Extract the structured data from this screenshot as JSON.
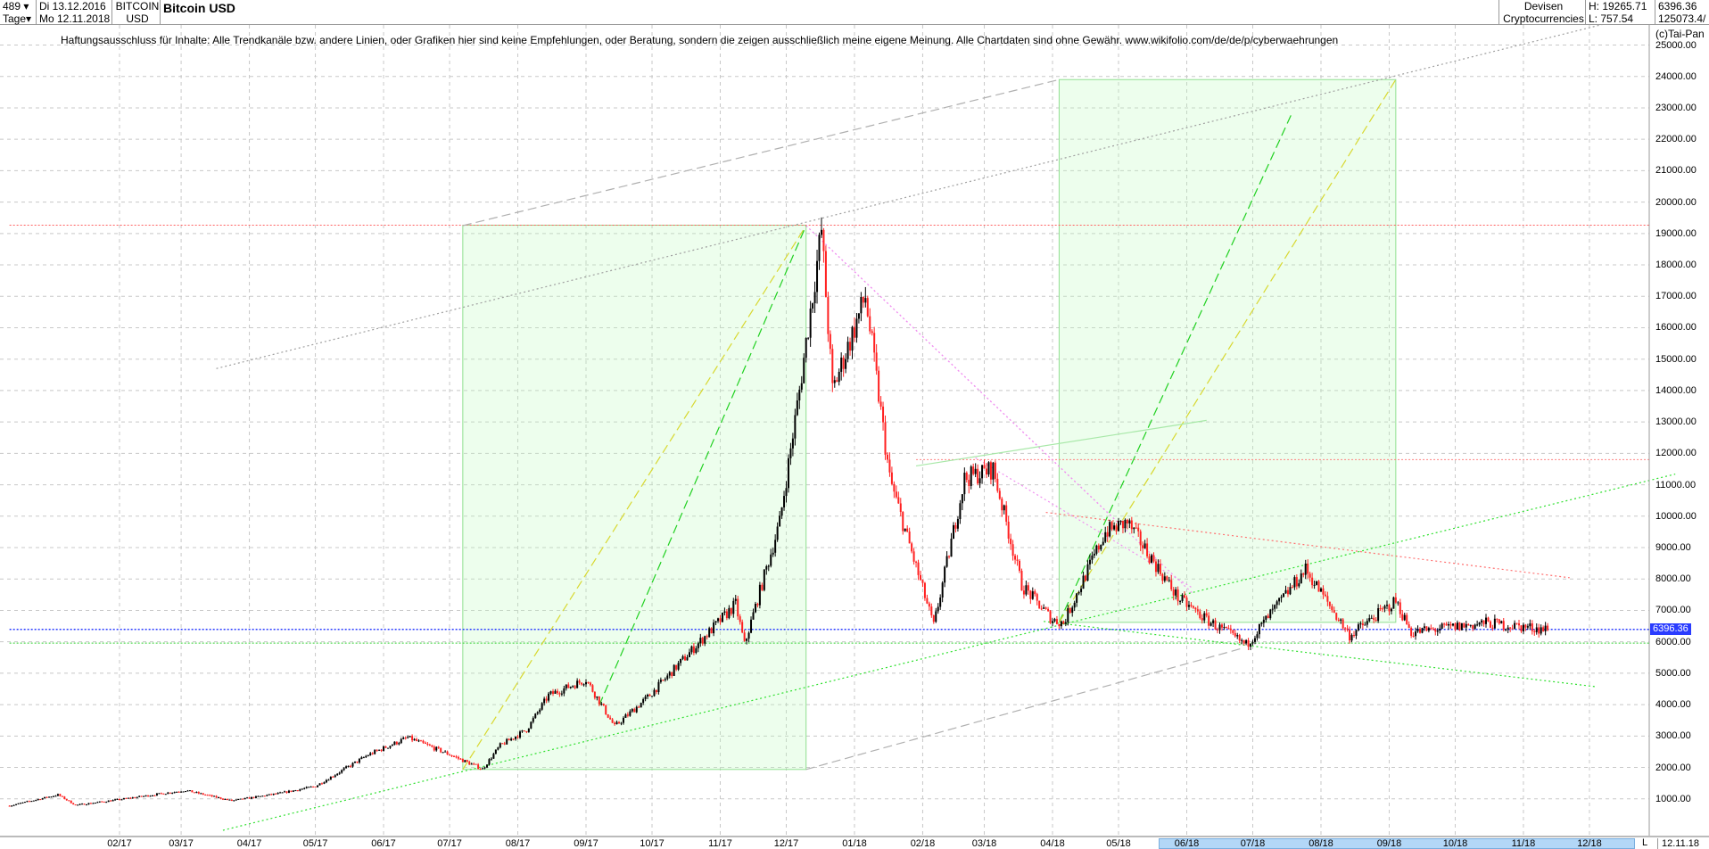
{
  "header": {
    "count": "489",
    "period": "Tage",
    "start_date": "Di 13.12.2016",
    "end_date": "Mo 12.11.2018",
    "symbol_line1": "BITCOIN",
    "symbol_line2": "USD",
    "title": "Bitcoin USD",
    "category1": "Devisen",
    "category2": "Cryptocurrencies",
    "high": "H: 19265.71",
    "low": "L: 757.54",
    "last": "6396.36",
    "volume": "125073.4/"
  },
  "disclaimer": "Haftungsausschluss für Inhalte: Alle Trendkanäle bzw. andere Linien, oder Grafiken hier sind keine Empfehlungen, oder Beratung, sondern die zeigen ausschließlich meine eigene Meinung. Alle Chartdaten sind ohne Gewähr.  www.wikifolio.com/de/de/p/cyberwaehrungen",
  "copyright": "(c)Tai-Pan",
  "xaxis": {
    "l_button": "L",
    "current_date": "12.11.18"
  },
  "colors": {
    "up": "#000000",
    "down": "#ff2020",
    "box": "#90e090",
    "last_price": "#2a3cff"
  },
  "chart_data": {
    "type": "candlestick",
    "title": "Bitcoin USD",
    "ylim": [
      0,
      25000
    ],
    "yticks": [
      "1000.00",
      "2000.00",
      "3000.00",
      "4000.00",
      "5000.00",
      "6000.00",
      "7000.00",
      "8000.00",
      "9000.00",
      "10000.00",
      "11000.00",
      "12000.00",
      "13000.00",
      "14000.00",
      "15000.00",
      "16000.00",
      "17000.00",
      "18000.00",
      "19000.00",
      "20000.00",
      "21000.00",
      "22000.00",
      "23000.00",
      "24000.00",
      "25000.00"
    ],
    "xticks": [
      [
        "2017-02-01",
        "02/17"
      ],
      [
        "2017-03-01",
        "03/17"
      ],
      [
        "2017-04-01",
        "04/17"
      ],
      [
        "2017-05-01",
        "05/17"
      ],
      [
        "2017-06-01",
        "06/17"
      ],
      [
        "2017-07-01",
        "07/17"
      ],
      [
        "2017-08-01",
        "08/17"
      ],
      [
        "2017-09-01",
        "09/17"
      ],
      [
        "2017-10-01",
        "10/17"
      ],
      [
        "2017-11-01",
        "11/17"
      ],
      [
        "2017-12-01",
        "12/17"
      ],
      [
        "2018-01-01",
        "01/18"
      ],
      [
        "2018-02-01",
        "02/18"
      ],
      [
        "2018-03-01",
        "03/18"
      ],
      [
        "2018-04-01",
        "04/18"
      ],
      [
        "2018-05-01",
        "05/18"
      ],
      [
        "2018-06-01",
        "06/18"
      ],
      [
        "2018-07-01",
        "07/18"
      ],
      [
        "2018-08-01",
        "08/18"
      ],
      [
        "2018-09-01",
        "09/18"
      ],
      [
        "2018-10-01",
        "10/18"
      ],
      [
        "2018-11-01",
        "11/18"
      ],
      [
        "2018-12-01",
        "12/18"
      ]
    ],
    "grid": true,
    "last_price": "6396.36",
    "price_path": [
      [
        "2016-12-13",
        780
      ],
      [
        "2017-01-04",
        1130
      ],
      [
        "2017-01-12",
        800
      ],
      [
        "2017-02-01",
        980
      ],
      [
        "2017-03-03",
        1270
      ],
      [
        "2017-03-24",
        940
      ],
      [
        "2017-04-15",
        1180
      ],
      [
        "2017-05-01",
        1400
      ],
      [
        "2017-05-25",
        2400
      ],
      [
        "2017-06-12",
        2950
      ],
      [
        "2017-06-28",
        2500
      ],
      [
        "2017-07-16",
        1950
      ],
      [
        "2017-07-24",
        2700
      ],
      [
        "2017-08-05",
        3200
      ],
      [
        "2017-08-15",
        4300
      ],
      [
        "2017-09-01",
        4800
      ],
      [
        "2017-09-14",
        3300
      ],
      [
        "2017-09-30",
        4300
      ],
      [
        "2017-10-20",
        5800
      ],
      [
        "2017-11-08",
        7200
      ],
      [
        "2017-11-12",
        5900
      ],
      [
        "2017-11-28",
        9800
      ],
      [
        "2017-12-07",
        14000
      ],
      [
        "2017-12-17",
        19100
      ],
      [
        "2017-12-22",
        14000
      ],
      [
        "2018-01-06",
        17000
      ],
      [
        "2018-01-17",
        11200
      ],
      [
        "2018-02-06",
        6500
      ],
      [
        "2018-02-20",
        11200
      ],
      [
        "2018-03-05",
        11500
      ],
      [
        "2018-03-18",
        7800
      ],
      [
        "2018-04-01",
        6700
      ],
      [
        "2018-04-06",
        6600
      ],
      [
        "2018-04-25",
        9500
      ],
      [
        "2018-05-05",
        9800
      ],
      [
        "2018-05-28",
        7400
      ],
      [
        "2018-06-10",
        6700
      ],
      [
        "2018-06-28",
        5900
      ],
      [
        "2018-07-25",
        8300
      ],
      [
        "2018-08-14",
        6200
      ],
      [
        "2018-09-04",
        7300
      ],
      [
        "2018-09-11",
        6300
      ],
      [
        "2018-10-15",
        6600
      ],
      [
        "2018-11-12",
        6396
      ]
    ],
    "boxes": [
      {
        "from": [
          "2017-07-07",
          1936
        ],
        "to": [
          "2017-12-10",
          19265
        ]
      },
      {
        "from": [
          "2018-04-04",
          6620
        ],
        "to": [
          "2018-09-04",
          23900
        ]
      }
    ],
    "hlines": [
      {
        "price": 19265,
        "color": "#ff6060",
        "from": "2016-12-13"
      },
      {
        "price": 6396.36,
        "color": "#2a3cff",
        "from": "2016-12-13"
      },
      {
        "price": 5960,
        "color": "#30d030",
        "from": "2016-12-13"
      },
      {
        "price": 11800,
        "color": "#ff8080",
        "from": "2018-01-29"
      }
    ],
    "trendlines": [
      {
        "p1": [
          "2017-07-07",
          19250
        ],
        "p2": [
          "2018-04-04",
          23900
        ],
        "color": "#b0b0b0",
        "style": "dash"
      },
      {
        "p1": [
          "2017-12-10",
          1936
        ],
        "p2": [
          "2018-06-26",
          5790
        ],
        "color": "#b0b0b0",
        "style": "dash"
      },
      {
        "p1": [
          "2017-03-17",
          14700
        ],
        "p2": [
          "2018-12-21",
          25900
        ],
        "color": "#a0a0a0",
        "style": "dot"
      },
      {
        "p1": [
          "2017-07-07",
          1936
        ],
        "p2": [
          "2017-12-10",
          19250
        ],
        "color": "#d8d830",
        "style": "dash"
      },
      {
        "p1": [
          "2017-09-07",
          3980
        ],
        "p2": [
          "2017-12-10",
          19250
        ],
        "color": "#20d020",
        "style": "dash"
      },
      {
        "p1": [
          "2018-04-04",
          6620
        ],
        "p2": [
          "2018-07-19",
          22860
        ],
        "color": "#20d020",
        "style": "dash"
      },
      {
        "p1": [
          "2018-04-04",
          6620
        ],
        "p2": [
          "2018-09-04",
          23900
        ],
        "color": "#d8d830",
        "style": "dash"
      },
      {
        "p1": [
          "2017-03-20",
          0
        ],
        "p2": [
          "2019-01-09",
          11340
        ],
        "color": "#30e030",
        "style": "dot"
      },
      {
        "p1": [
          "2018-03-28",
          6650
        ],
        "p2": [
          "2018-12-04",
          4570
        ],
        "color": "#30e030",
        "style": "dot"
      },
      {
        "p1": [
          "2017-12-10",
          19250
        ],
        "p2": [
          "2018-05-01",
          9780
        ],
        "color": "#f090f0",
        "style": "dot"
      },
      {
        "p1": [
          "2017-12-10",
          19250
        ],
        "p2": [
          "2018-06-04",
          7520
        ],
        "color": "#f090f0",
        "style": "dot"
      },
      {
        "p1": [
          "2018-02-25",
          11860
        ],
        "p2": [
          "2018-06-04",
          7700
        ],
        "color": "#f090f0",
        "style": "dot"
      },
      {
        "p1": [
          "2018-03-29",
          10120
        ],
        "p2": [
          "2018-11-22",
          8040
        ],
        "color": "#ff7070",
        "style": "dot"
      },
      {
        "p1": [
          "2018-01-29",
          11600
        ],
        "p2": [
          "2018-06-10",
          13050
        ],
        "color": "#a8e8a8",
        "style": "solid"
      }
    ]
  }
}
